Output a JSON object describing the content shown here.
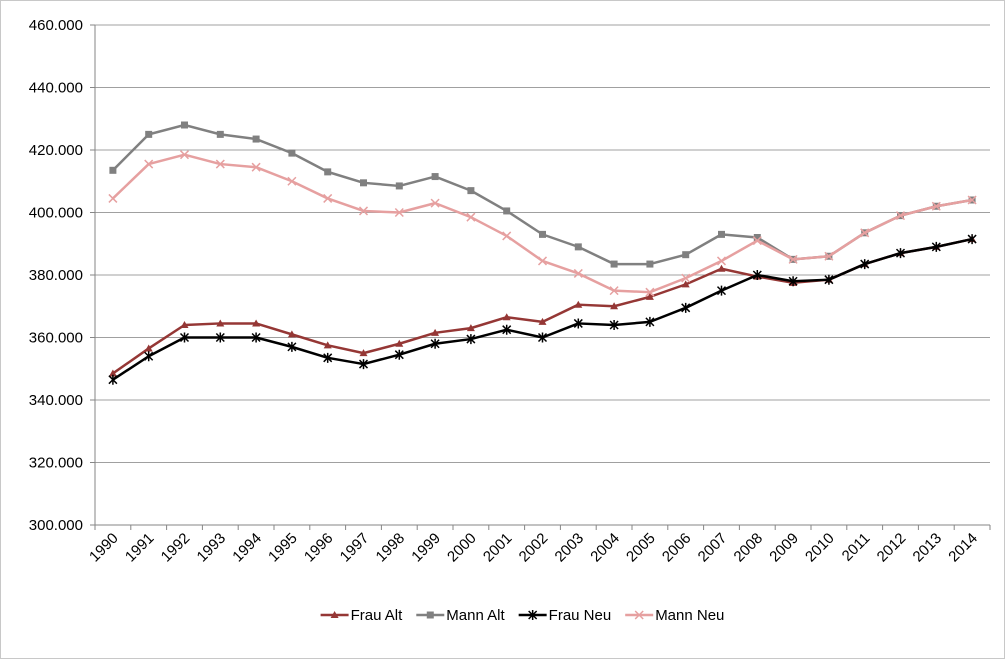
{
  "chart_data": {
    "type": "line",
    "categories": [
      "1990",
      "1991",
      "1992",
      "1993",
      "1994",
      "1995",
      "1996",
      "1997",
      "1998",
      "1999",
      "2000",
      "2001",
      "2002",
      "2003",
      "2004",
      "2005",
      "2006",
      "2007",
      "2008",
      "2009",
      "2010",
      "2011",
      "2012",
      "2013",
      "2014"
    ],
    "series": [
      {
        "name": "Frau Alt",
        "color": "#953735",
        "marker": "triangle",
        "values": [
          348500,
          356500,
          364000,
          364500,
          364500,
          361000,
          357500,
          355000,
          358000,
          361500,
          363000,
          366500,
          365000,
          370500,
          370000,
          373000,
          377000,
          382000,
          379500,
          377500,
          378500,
          383500,
          387000,
          389000,
          391500
        ]
      },
      {
        "name": "Mann Alt",
        "color": "#808080",
        "marker": "square",
        "values": [
          413500,
          425000,
          428000,
          425000,
          423500,
          419000,
          413000,
          409500,
          408500,
          411500,
          407000,
          400500,
          393000,
          389000,
          383500,
          383500,
          386500,
          393000,
          392000,
          385000,
          386000,
          393500,
          399000,
          402000,
          404000
        ]
      },
      {
        "name": "Frau Neu",
        "color": "#000000",
        "marker": "star",
        "values": [
          346500,
          354000,
          360000,
          360000,
          360000,
          357000,
          353500,
          351500,
          354500,
          358000,
          359500,
          362500,
          360000,
          364500,
          364000,
          365000,
          369500,
          375000,
          380000,
          378000,
          378500,
          383500,
          387000,
          389000,
          391500
        ]
      },
      {
        "name": "Mann Neu",
        "color": "#e6a0a0",
        "marker": "x",
        "values": [
          404500,
          415500,
          418500,
          415500,
          414500,
          410000,
          404500,
          400500,
          400000,
          403000,
          398500,
          392500,
          384500,
          380500,
          375000,
          374500,
          379000,
          384500,
          391000,
          385000,
          386000,
          393500,
          399000,
          402000,
          404000
        ]
      }
    ],
    "ylim": [
      300000,
      460000
    ],
    "yticks": [
      {
        "value": 300000,
        "label": "300.000"
      },
      {
        "value": 320000,
        "label": "320.000"
      },
      {
        "value": 340000,
        "label": "340.000"
      },
      {
        "value": 360000,
        "label": "360.000"
      },
      {
        "value": 380000,
        "label": "380.000"
      },
      {
        "value": 400000,
        "label": "400.000"
      },
      {
        "value": 420000,
        "label": "420.000"
      },
      {
        "value": 440000,
        "label": "440.000"
      },
      {
        "value": 460000,
        "label": "460.000"
      }
    ],
    "grid": true,
    "legend": "bottom"
  }
}
